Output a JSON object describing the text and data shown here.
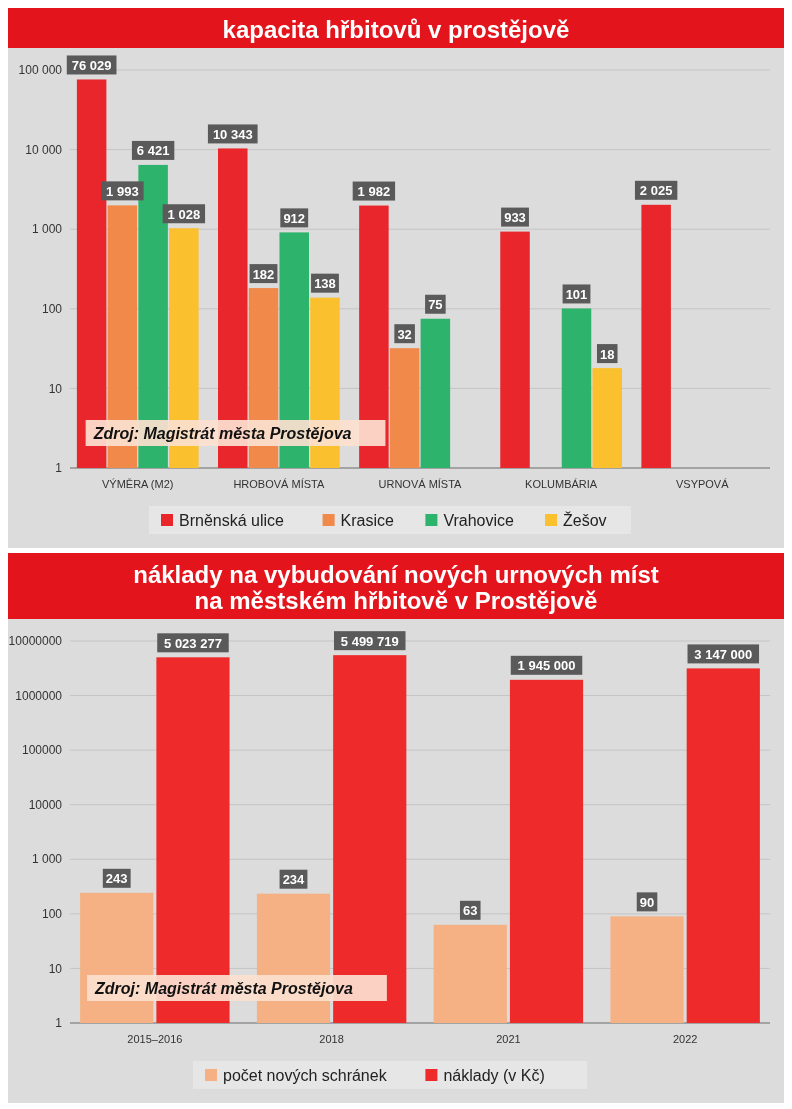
{
  "chart_data": [
    {
      "type": "bar",
      "title": "kapacita hřbitovů v prostějově",
      "categories": [
        "VÝMĚRA (M2)",
        "HROBOVÁ MÍSTA",
        "URNOVÁ MÍSTA",
        "KOLUMBÁRIA",
        "VSYPOVÁ"
      ],
      "log": true,
      "grid": "y",
      "legend": "bottom",
      "ylim": [
        1,
        100000
      ],
      "yticks": [
        1,
        10,
        100,
        {
          "value": 1000,
          "label": "1 000"
        },
        {
          "value": 10000,
          "label": "10 000"
        },
        {
          "value": 100000,
          "label": "100 000"
        }
      ],
      "annotations": [
        "Zdroj: Magistrát města Prostějova"
      ],
      "series": [
        {
          "name": "Brněnská ulice",
          "color": "#e8262b",
          "values": [
            76029,
            10343,
            1982,
            933,
            2025
          ],
          "value_labels": [
            "76 029",
            "10 343",
            "1 982",
            "933",
            "2 025"
          ]
        },
        {
          "name": "Krasice",
          "color": "#f0894a",
          "values": [
            1993,
            182,
            32,
            null,
            null
          ],
          "value_labels": [
            "1 993",
            "182",
            "32",
            null,
            null
          ]
        },
        {
          "name": "Vrahovice",
          "color": "#2db36b",
          "values": [
            6421,
            912,
            75,
            101,
            null
          ],
          "value_labels": [
            "6 421",
            "912",
            "75",
            "101",
            null
          ]
        },
        {
          "name": "Žešov",
          "color": "#fbc02d",
          "values": [
            1028,
            138,
            null,
            18,
            null
          ],
          "value_labels": [
            "1 028",
            "138",
            null,
            "18",
            null
          ]
        }
      ]
    },
    {
      "type": "bar",
      "title": "náklady na vybudování nových urnových míst\nna městském hřbitově v Prostějově",
      "categories": [
        "2015–2016",
        "2018",
        "2021",
        "2022"
      ],
      "log": true,
      "grid": "y",
      "legend": "bottom",
      "ylim": [
        1,
        10000000
      ],
      "yticks": [
        1,
        10,
        100,
        {
          "value": 1000,
          "label": "1 000"
        },
        10000,
        100000,
        1000000,
        10000000
      ],
      "annotations": [
        "Zdroj: Magistrát města Prostějova"
      ],
      "series": [
        {
          "name": "počet nových schránek",
          "color": "#f5b183",
          "values": [
            243,
            234,
            63,
            90
          ],
          "value_labels": [
            "243",
            "234",
            "63",
            "90"
          ]
        },
        {
          "name": "náklady (v Kč)",
          "color": "#ee2a2a",
          "values": [
            5023277,
            5499719,
            1945000,
            3147000
          ],
          "value_labels": [
            "5 023 277",
            "5 499 719",
            "1 945 000",
            "3 147 000"
          ]
        }
      ]
    }
  ]
}
